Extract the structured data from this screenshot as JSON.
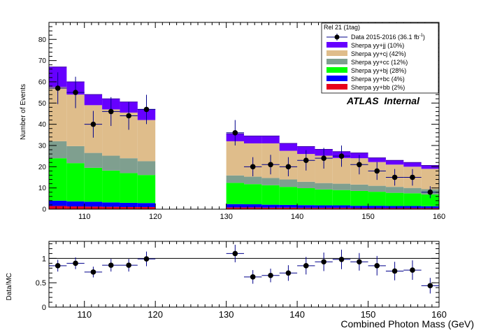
{
  "chart_data": [
    {
      "type": "stacked-histogram",
      "ylabel": "Number of Events",
      "xlim": [
        105,
        160
      ],
      "ylim": [
        0,
        88
      ],
      "y_ticks": [
        0,
        10,
        20,
        30,
        40,
        50,
        60,
        70,
        80
      ],
      "x_ticks": [
        110,
        120,
        130,
        140,
        150,
        160
      ],
      "annotation": "ATLAS  Internal",
      "legend": {
        "placement": "top-right",
        "header": "Rel 21 (1tag)",
        "data_label": "Data 2015-2016 (36.1 fb",
        "data_label_sup": "-1",
        "data_label_close": ")"
      },
      "bin_edges": [
        105,
        107.5,
        110,
        112.5,
        115,
        117.5,
        120,
        122.5,
        125,
        127.5,
        130,
        132.5,
        135,
        137.5,
        140,
        142.5,
        145,
        147.5,
        150,
        152.5,
        155,
        157.5,
        160
      ],
      "series": [
        {
          "name": "Sherpa yy+bb (2%)",
          "color": "#e8001c",
          "values": [
            1.5,
            1.3,
            1.2,
            1.1,
            1.0,
            1.0,
            0,
            0,
            0,
            0,
            0.8,
            0.8,
            0.7,
            0.7,
            0.6,
            0.6,
            0.6,
            0.5,
            0.5,
            0.5,
            0.5,
            0.5
          ]
        },
        {
          "name": "Sherpa yy+bc (4%)",
          "color": "#0000ff",
          "values": [
            2.5,
            2.4,
            2.3,
            2.1,
            2.0,
            1.9,
            0,
            0,
            0,
            0,
            1.6,
            1.5,
            1.4,
            1.3,
            1.3,
            1.2,
            1.2,
            1.1,
            1.1,
            1.0,
            1.0,
            0.9
          ]
        },
        {
          "name": "Sherpa yy+bj (28%)",
          "color": "#00ff00",
          "values": [
            20,
            18,
            16,
            15,
            14,
            13.2,
            0,
            0,
            0,
            0,
            10,
            9.5,
            9.2,
            8.5,
            8,
            7.5,
            7.2,
            7,
            6.6,
            6.2,
            6,
            5.5
          ]
        },
        {
          "name": "Sherpa yy+cc (12%)",
          "color": "#7f9f8f",
          "values": [
            8,
            8,
            7,
            7,
            7,
            6.5,
            0,
            0,
            0,
            0,
            3.5,
            3.5,
            3.4,
            3.5,
            3,
            3,
            3,
            3,
            2.8,
            2.8,
            2.5,
            2.5
          ]
        },
        {
          "name": "Sherpa yy+cj (42%)",
          "color": "#dfbd8b",
          "values": [
            25.5,
            24.3,
            22.5,
            21.8,
            21.5,
            19.4,
            0,
            0,
            0,
            0,
            16.1,
            15.7,
            16.3,
            13.5,
            13.1,
            12.9,
            12.1,
            12.4,
            11.2,
            10.5,
            10.0,
            9.6
          ]
        },
        {
          "name": "Sherpa yy+jj (10%)",
          "color": "#6600ff",
          "values": [
            9.5,
            6,
            5,
            5,
            5,
            5,
            0,
            0,
            0,
            0,
            3.5,
            3.5,
            3.5,
            3.5,
            3.5,
            3,
            3.0,
            2.5,
            2.0,
            2.0,
            2,
            1.6
          ]
        }
      ],
      "data_points": {
        "name": "Data 2015-2016 (36.1 fb-1)",
        "x": [
          106.25,
          108.75,
          111.25,
          113.75,
          116.25,
          118.75,
          131.25,
          133.75,
          136.25,
          138.75,
          141.25,
          143.75,
          146.25,
          148.75,
          151.25,
          153.75,
          156.25,
          158.75
        ],
        "y": [
          57,
          55,
          40,
          46,
          44,
          47,
          36,
          20,
          21,
          20,
          23,
          24,
          25,
          21,
          18,
          15,
          15,
          8
        ],
        "yerr": [
          7.5,
          7.4,
          6.3,
          6.8,
          6.6,
          6.9,
          6,
          4.5,
          4.6,
          4.5,
          4.8,
          4.9,
          5,
          4.6,
          4.2,
          3.9,
          3.9,
          2.8
        ]
      }
    },
    {
      "type": "scatter",
      "ylabel": "Data/MC",
      "xlabel": "Combined Photon Mass (GeV)",
      "xlim": [
        105,
        160
      ],
      "ylim": [
        0,
        1.35
      ],
      "y_ticks": [
        0,
        0.5,
        1
      ],
      "y_tick_labels": [
        "0",
        "0.5",
        "1"
      ],
      "x_ticks": [
        110,
        120,
        130,
        140,
        150,
        160
      ],
      "reference_line": 1,
      "x": [
        106.25,
        108.75,
        111.25,
        113.75,
        116.25,
        118.75,
        131.25,
        133.75,
        136.25,
        138.75,
        141.25,
        143.75,
        146.25,
        148.75,
        151.25,
        153.75,
        156.25,
        158.75
      ],
      "y": [
        0.85,
        0.9,
        0.72,
        0.86,
        0.86,
        0.99,
        1.1,
        0.62,
        0.65,
        0.7,
        0.85,
        0.93,
        0.98,
        0.93,
        0.85,
        0.74,
        0.76,
        0.44
      ],
      "yerr": [
        0.12,
        0.12,
        0.11,
        0.13,
        0.13,
        0.15,
        0.18,
        0.14,
        0.14,
        0.16,
        0.18,
        0.19,
        0.2,
        0.18,
        0.2,
        0.19,
        0.2,
        0.16
      ]
    }
  ]
}
